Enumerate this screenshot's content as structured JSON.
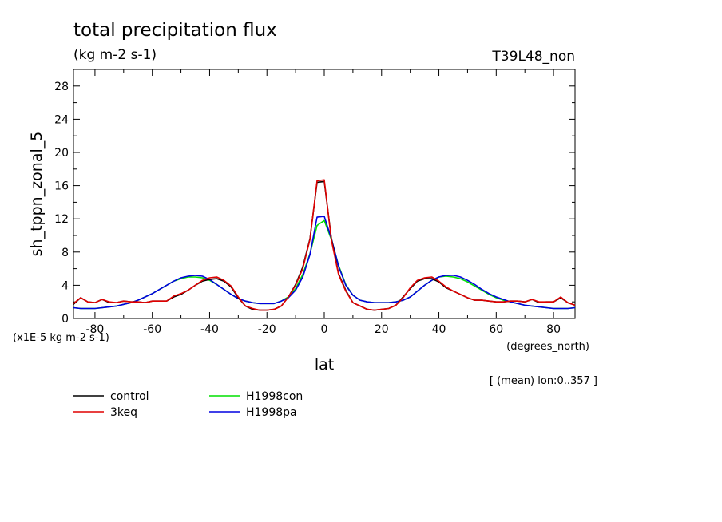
{
  "chart_data": {
    "type": "line",
    "title": "total precipitation flux",
    "subtitle": "(kg m-2 s-1)",
    "run_label": "T39L48_non",
    "xlabel": "lat",
    "x_units": "(degrees_north)",
    "ylabel": "sh_tppn_zonal_5",
    "y_scale_note": "(x1E-5 kg m-2 s-1)",
    "averaging_note": "[ (mean) lon:0..357 ]",
    "xlim": [
      -87.5,
      87.5
    ],
    "ylim": [
      0,
      30
    ],
    "xticks": [
      -80,
      -60,
      -40,
      -20,
      0,
      20,
      40,
      60,
      80
    ],
    "xtick_labels": [
      "-80",
      "-60",
      "-40",
      "-20",
      "0",
      "20",
      "40",
      "60",
      "80"
    ],
    "yticks": [
      0,
      4,
      8,
      12,
      16,
      20,
      24,
      28
    ],
    "ytick_labels": [
      "0",
      "4",
      "8",
      "12",
      "16",
      "20",
      "24",
      "28"
    ],
    "grid": false,
    "legend_position": "bottom-left",
    "series": [
      {
        "name": "control",
        "color": "#000000",
        "x": [
          -87.5,
          -85,
          -82.5,
          -80,
          -77.5,
          -75,
          -72.5,
          -70,
          -67.5,
          -65,
          -62.5,
          -60,
          -57.5,
          -55,
          -52.5,
          -50,
          -47.5,
          -45,
          -42.5,
          -40,
          -37.5,
          -35,
          -32.5,
          -30,
          -27.5,
          -25,
          -22.5,
          -20,
          -17.5,
          -15,
          -12.5,
          -10,
          -7.5,
          -5,
          -2.5,
          0,
          2.5,
          5,
          7.5,
          10,
          12.5,
          15,
          17.5,
          20,
          22.5,
          25,
          27.5,
          30,
          32.5,
          35,
          37.5,
          40,
          42.5,
          45,
          47.5,
          50,
          52.5,
          55,
          57.5,
          60,
          62.5,
          65,
          67.5,
          70,
          72.5,
          75,
          77.5,
          80,
          82.5,
          85,
          87.5
        ],
        "y": [
          1.7,
          2.5,
          2.0,
          1.9,
          2.3,
          1.9,
          1.9,
          2.1,
          2.0,
          2.0,
          1.9,
          2.1,
          2.1,
          2.1,
          2.6,
          2.9,
          3.4,
          4.0,
          4.5,
          4.7,
          4.8,
          4.5,
          3.8,
          2.5,
          1.5,
          1.1,
          1.0,
          1.0,
          1.1,
          1.5,
          2.6,
          4.1,
          6.2,
          9.6,
          16.4,
          16.5,
          9.6,
          5.4,
          3.4,
          1.9,
          1.5,
          1.1,
          1.0,
          1.1,
          1.2,
          1.6,
          2.6,
          3.6,
          4.5,
          4.8,
          4.8,
          4.4,
          3.7,
          3.3,
          2.9,
          2.5,
          2.2,
          2.2,
          2.1,
          2.0,
          2.0,
          2.1,
          2.1,
          2.0,
          2.3,
          1.9,
          2.0,
          2.0,
          2.5,
          1.9,
          1.6
        ]
      },
      {
        "name": "3keq",
        "color": "#e00000",
        "x": [
          -87.5,
          -85,
          -82.5,
          -80,
          -77.5,
          -75,
          -72.5,
          -70,
          -67.5,
          -65,
          -62.5,
          -60,
          -57.5,
          -55,
          -52.5,
          -50,
          -47.5,
          -45,
          -42.5,
          -40,
          -37.5,
          -35,
          -32.5,
          -30,
          -27.5,
          -25,
          -22.5,
          -20,
          -17.5,
          -15,
          -12.5,
          -10,
          -7.5,
          -5,
          -2.5,
          0,
          2.5,
          5,
          7.5,
          10,
          12.5,
          15,
          17.5,
          20,
          22.5,
          25,
          27.5,
          30,
          32.5,
          35,
          37.5,
          40,
          42.5,
          45,
          47.5,
          50,
          52.5,
          55,
          57.5,
          60,
          62.5,
          65,
          67.5,
          70,
          72.5,
          75,
          77.5,
          80,
          82.5,
          85,
          87.5
        ],
        "y": [
          1.8,
          2.5,
          2.0,
          1.9,
          2.3,
          2.0,
          1.9,
          2.1,
          2.0,
          2.0,
          1.9,
          2.1,
          2.1,
          2.1,
          2.7,
          3.0,
          3.4,
          4.0,
          4.6,
          4.9,
          5.0,
          4.6,
          3.9,
          2.6,
          1.5,
          1.2,
          1.0,
          1.0,
          1.1,
          1.5,
          2.6,
          4.0,
          6.0,
          9.5,
          16.6,
          16.7,
          9.4,
          5.3,
          3.3,
          1.9,
          1.5,
          1.1,
          1.0,
          1.1,
          1.2,
          1.6,
          2.5,
          3.7,
          4.6,
          4.9,
          5.0,
          4.5,
          3.8,
          3.3,
          2.9,
          2.5,
          2.2,
          2.2,
          2.1,
          2.0,
          2.0,
          2.1,
          2.1,
          2.0,
          2.3,
          2.0,
          2.0,
          2.0,
          2.6,
          1.9,
          1.6
        ]
      },
      {
        "name": "H1998con",
        "color": "#00e000",
        "x": [
          -87.5,
          -85,
          -82.5,
          -80,
          -77.5,
          -75,
          -72.5,
          -70,
          -67.5,
          -65,
          -62.5,
          -60,
          -57.5,
          -55,
          -52.5,
          -50,
          -47.5,
          -45,
          -42.5,
          -40,
          -37.5,
          -35,
          -32.5,
          -30,
          -27.5,
          -25,
          -22.5,
          -20,
          -17.5,
          -15,
          -12.5,
          -10,
          -7.5,
          -5,
          -2.5,
          0,
          2.5,
          5,
          7.5,
          10,
          12.5,
          15,
          17.5,
          20,
          22.5,
          25,
          27.5,
          30,
          32.5,
          35,
          37.5,
          40,
          42.5,
          45,
          47.5,
          50,
          52.5,
          55,
          57.5,
          60,
          62.5,
          65,
          67.5,
          70,
          72.5,
          75,
          77.5,
          80,
          82.5,
          85,
          87.5
        ],
        "y": [
          1.3,
          1.2,
          1.2,
          1.2,
          1.3,
          1.4,
          1.5,
          1.7,
          1.9,
          2.2,
          2.6,
          3.0,
          3.5,
          4.0,
          4.5,
          4.8,
          5.0,
          5.0,
          4.9,
          4.6,
          4.1,
          3.5,
          2.9,
          2.4,
          2.1,
          1.9,
          1.8,
          1.8,
          1.8,
          2.1,
          2.6,
          3.6,
          5.3,
          7.8,
          11.2,
          11.8,
          9.5,
          6.4,
          4.1,
          2.8,
          2.2,
          2.0,
          1.9,
          1.9,
          1.9,
          2.0,
          2.2,
          2.6,
          3.3,
          4.0,
          4.6,
          5.0,
          5.1,
          5.0,
          4.8,
          4.4,
          3.9,
          3.4,
          2.9,
          2.5,
          2.2,
          2.0,
          1.8,
          1.6,
          1.5,
          1.4,
          1.3,
          1.2,
          1.2,
          1.2,
          1.3
        ]
      },
      {
        "name": "H1998pa",
        "color": "#0000e0",
        "x": [
          -87.5,
          -85,
          -82.5,
          -80,
          -77.5,
          -75,
          -72.5,
          -70,
          -67.5,
          -65,
          -62.5,
          -60,
          -57.5,
          -55,
          -52.5,
          -50,
          -47.5,
          -45,
          -42.5,
          -40,
          -37.5,
          -35,
          -32.5,
          -30,
          -27.5,
          -25,
          -22.5,
          -20,
          -17.5,
          -15,
          -12.5,
          -10,
          -7.5,
          -5,
          -2.5,
          0,
          2.5,
          5,
          7.5,
          10,
          12.5,
          15,
          17.5,
          20,
          22.5,
          25,
          27.5,
          30,
          32.5,
          35,
          37.5,
          40,
          42.5,
          45,
          47.5,
          50,
          52.5,
          55,
          57.5,
          60,
          62.5,
          65,
          67.5,
          70,
          72.5,
          75,
          77.5,
          80,
          82.5,
          85,
          87.5
        ],
        "y": [
          1.3,
          1.2,
          1.2,
          1.2,
          1.3,
          1.4,
          1.5,
          1.7,
          1.9,
          2.2,
          2.6,
          3.0,
          3.5,
          4.0,
          4.5,
          4.9,
          5.1,
          5.2,
          5.1,
          4.7,
          4.1,
          3.5,
          2.9,
          2.4,
          2.1,
          1.9,
          1.8,
          1.8,
          1.8,
          2.1,
          2.5,
          3.4,
          5.0,
          7.7,
          12.2,
          12.3,
          9.6,
          6.3,
          4.0,
          2.8,
          2.2,
          2.0,
          1.9,
          1.9,
          1.9,
          2.0,
          2.2,
          2.6,
          3.3,
          4.0,
          4.6,
          5.0,
          5.2,
          5.2,
          5.0,
          4.6,
          4.1,
          3.5,
          3.0,
          2.6,
          2.3,
          2.0,
          1.8,
          1.6,
          1.5,
          1.4,
          1.3,
          1.2,
          1.2,
          1.2,
          1.3
        ]
      }
    ]
  }
}
